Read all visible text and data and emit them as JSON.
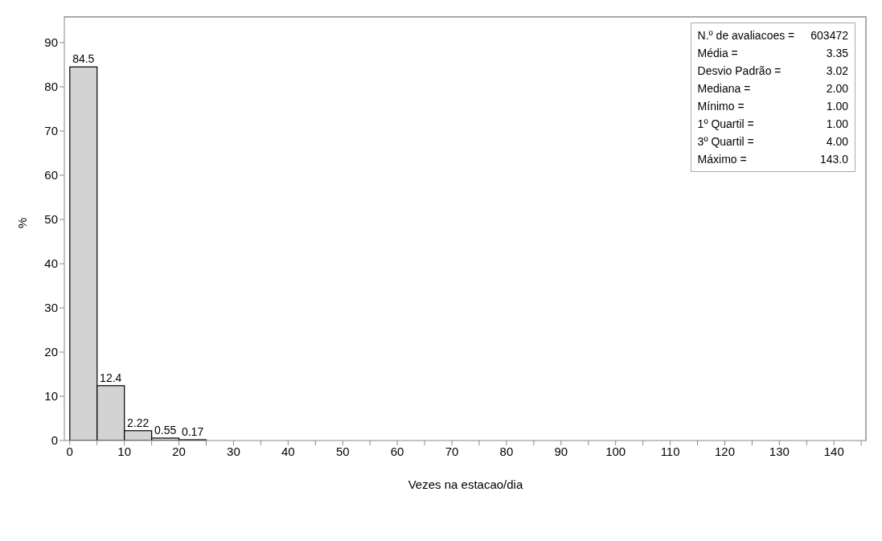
{
  "chart_data": {
    "type": "histogram",
    "xlabel": "Vezes na estacao/dia",
    "ylabel": "%",
    "bins": [
      0,
      5,
      10,
      15,
      20,
      25
    ],
    "values": [
      84.5,
      12.4,
      2.22,
      0.55,
      0.17
    ],
    "color": "#d3d3d3",
    "data_labels": true,
    "xlim": [
      -1,
      146
    ],
    "ylim": [
      0,
      96
    ],
    "xticks": [
      0,
      {
        "value": 5,
        "label": null
      },
      10,
      {
        "value": 15,
        "label": null
      },
      20,
      {
        "value": 25,
        "label": null
      },
      30,
      {
        "value": 35,
        "label": null
      },
      40,
      {
        "value": 45,
        "label": null
      },
      50,
      {
        "value": 55,
        "label": null
      },
      60,
      {
        "value": 65,
        "label": null
      },
      70,
      {
        "value": 75,
        "label": null
      },
      80,
      {
        "value": 85,
        "label": null
      },
      90,
      {
        "value": 95,
        "label": null
      },
      100,
      {
        "value": 105,
        "label": null
      },
      110,
      {
        "value": 115,
        "label": null
      },
      120,
      {
        "value": 125,
        "label": null
      },
      130,
      {
        "value": 135,
        "label": null
      },
      140,
      {
        "value": 145,
        "label": null
      }
    ],
    "yticks": [
      0,
      10,
      20,
      30,
      40,
      50,
      60,
      70,
      80,
      90
    ],
    "grid": false,
    "legend": false,
    "annotations": [
      "N.º de avaliacoes =",
      "603472",
      "Média =",
      "3.35",
      "Desvio Padrão =",
      "3.02",
      "Mediana =",
      "2.00",
      "Mínimo =",
      "1.00",
      "1º Quartil =",
      "1.00",
      "3º Quartil =",
      "4.00",
      "Máximo =",
      "143.0"
    ]
  }
}
